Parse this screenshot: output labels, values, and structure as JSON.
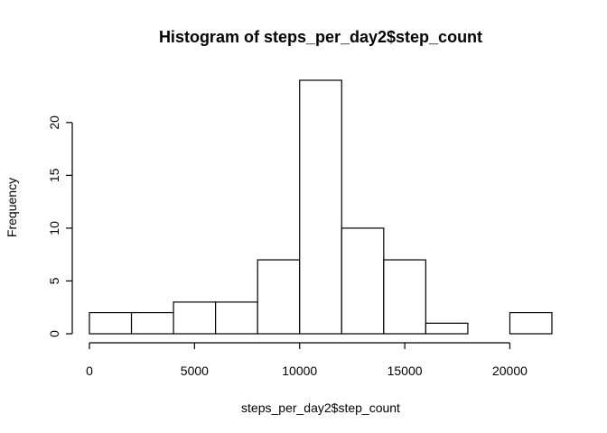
{
  "chart_data": {
    "type": "bar",
    "subtype": "histogram",
    "title": "Histogram of steps_per_day2$step_count",
    "xlabel": "steps_per_day2$step_count",
    "ylabel": "Frequency",
    "bin_edges": [
      0,
      2000,
      4000,
      6000,
      8000,
      10000,
      12000,
      14000,
      16000,
      18000,
      20000,
      22000
    ],
    "values": [
      2,
      2,
      3,
      3,
      7,
      24,
      10,
      7,
      1,
      0,
      2
    ],
    "xlim": [
      0,
      22000
    ],
    "ylim": [
      0,
      24
    ],
    "x_ticks": [
      0,
      5000,
      10000,
      15000,
      20000
    ],
    "x_tick_labels": [
      "0",
      "5000",
      "10000",
      "15000",
      "20000"
    ],
    "y_ticks": [
      0,
      5,
      10,
      15,
      20
    ],
    "y_tick_labels": [
      "0",
      "5",
      "10",
      "15",
      "20"
    ],
    "grid": false,
    "legend": false,
    "bar_fill": "#ffffff",
    "bar_stroke": "#000000"
  }
}
